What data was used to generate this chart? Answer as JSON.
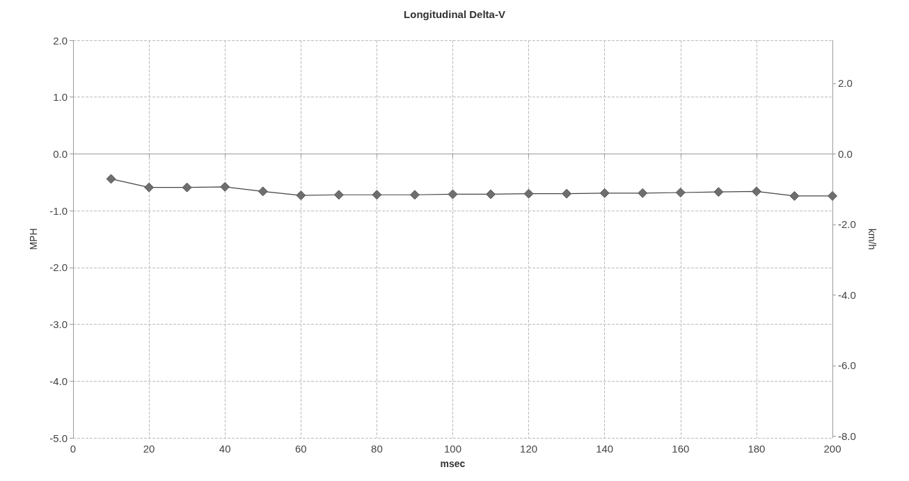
{
  "chart_data": {
    "type": "line",
    "title": "Longitudinal Delta-V",
    "xlabel": "msec",
    "ylabel": "MPH",
    "y2label": "km/h",
    "x": [
      10,
      20,
      30,
      40,
      50,
      60,
      70,
      80,
      90,
      100,
      110,
      120,
      130,
      140,
      150,
      160,
      170,
      180,
      190,
      200
    ],
    "series": [
      {
        "color": "#6e6e6e",
        "values": [
          -0.44,
          -0.59,
          -0.59,
          -0.58,
          -0.66,
          -0.73,
          -0.72,
          -0.72,
          -0.72,
          -0.71,
          -0.71,
          -0.7,
          -0.7,
          -0.69,
          -0.69,
          -0.68,
          -0.67,
          -0.66,
          -0.74,
          -0.74
        ]
      }
    ],
    "xlim": [
      0,
      200
    ],
    "xticks": [
      0,
      20,
      40,
      60,
      80,
      100,
      120,
      140,
      160,
      180,
      200
    ],
    "ylim": [
      -5,
      2
    ],
    "yticks": [
      {
        "value": -5,
        "label": "-5.0"
      },
      {
        "value": -4,
        "label": "-4.0"
      },
      {
        "value": -3,
        "label": "-3.0"
      },
      {
        "value": -2,
        "label": "-2.0"
      },
      {
        "value": -1,
        "label": "-1.0"
      },
      {
        "value": 0,
        "label": "0.0"
      },
      {
        "value": 1,
        "label": "1.0"
      },
      {
        "value": 2,
        "label": "2.0"
      }
    ],
    "y2lim": [
      -8.05,
      3.22
    ],
    "y2ticks": [
      {
        "value": -8,
        "label": "-8.0"
      },
      {
        "value": -6,
        "label": "-6.0"
      },
      {
        "value": -4,
        "label": "-4.0"
      },
      {
        "value": -2,
        "label": "-2.0"
      },
      {
        "value": 0,
        "label": "0.0"
      },
      {
        "value": 2,
        "label": "2.0"
      }
    ],
    "grid": true,
    "marker": "diamond",
    "line_style": "solid"
  }
}
